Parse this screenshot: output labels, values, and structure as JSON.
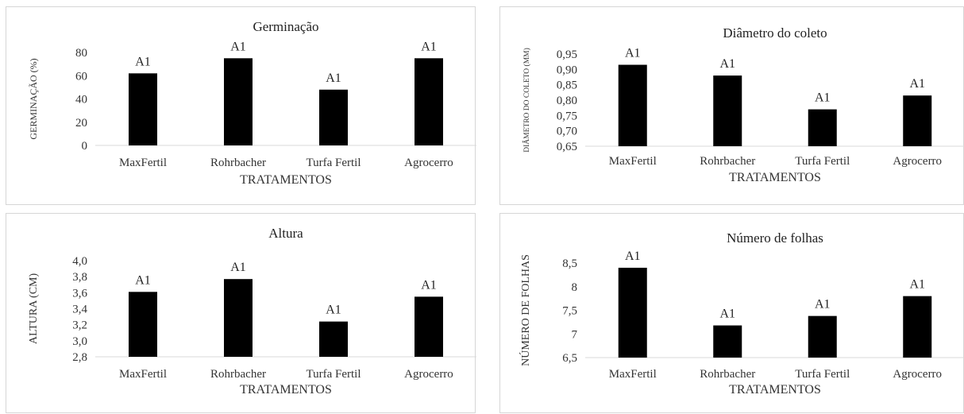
{
  "chart_data": [
    {
      "type": "bar",
      "title": "Germinação",
      "xlabel": "TRATAMENTOS",
      "ylabel": "GERMINAÇÃO (%)",
      "categories": [
        "MaxFertil",
        "Rohrbacher",
        "Turfa Fertil",
        "Agrocerro"
      ],
      "values": [
        62,
        75,
        48,
        75
      ],
      "data_labels": [
        "A1",
        "A1",
        "A1",
        "A1"
      ],
      "ylim": [
        0,
        80
      ],
      "yticks": [
        "0",
        "20",
        "40",
        "60",
        "80"
      ],
      "grid": false,
      "legend": "none",
      "bar_color": "#000000"
    },
    {
      "type": "bar",
      "title": "Diâmetro do coleto",
      "xlabel": "TRATAMENTOS",
      "ylabel": "DIÂMETRO DO COLETO (MM)",
      "categories": [
        "MaxFertil",
        "Rohrbacher",
        "Turfa Fertil",
        "Agrocerro"
      ],
      "values": [
        0.915,
        0.88,
        0.77,
        0.815
      ],
      "data_labels": [
        "A1",
        "A1",
        "A1",
        "A1"
      ],
      "ylim": [
        0.65,
        0.95
      ],
      "yticks": [
        "0,65",
        "0,70",
        "0,75",
        "0,80",
        "0,85",
        "0,90",
        "0,95"
      ],
      "grid": false,
      "legend": "none",
      "bar_color": "#000000"
    },
    {
      "type": "bar",
      "title": "Altura",
      "xlabel": "TRATAMENTOS",
      "ylabel": "ALTURA (CM)",
      "categories": [
        "MaxFertil",
        "Rohrbacher",
        "Turfa Fertil",
        "Agrocerro"
      ],
      "values": [
        3.61,
        3.77,
        3.24,
        3.55
      ],
      "data_labels": [
        "A1",
        "A1",
        "A1",
        "A1"
      ],
      "ylim": [
        2.8,
        4.0
      ],
      "yticks": [
        "2,8",
        "3,0",
        "3,2",
        "3,4",
        "3,6",
        "3,8",
        "4,0"
      ],
      "grid": false,
      "legend": "none",
      "bar_color": "#000000"
    },
    {
      "type": "bar",
      "title": "Número de folhas",
      "xlabel": "TRATAMENTOS",
      "ylabel": "NÚMERO DE FOLHAS",
      "categories": [
        "MaxFertil",
        "Rohrbacher",
        "Turfa Fertil",
        "Agrocerro"
      ],
      "values": [
        8.4,
        7.18,
        7.38,
        7.8
      ],
      "data_labels": [
        "A1",
        "A1",
        "A1",
        "A1"
      ],
      "ylim": [
        6.5,
        8.5
      ],
      "yticks": [
        "6,5",
        "7",
        "7,5",
        "8",
        "8,5"
      ],
      "grid": false,
      "legend": "none",
      "bar_color": "#000000"
    }
  ]
}
